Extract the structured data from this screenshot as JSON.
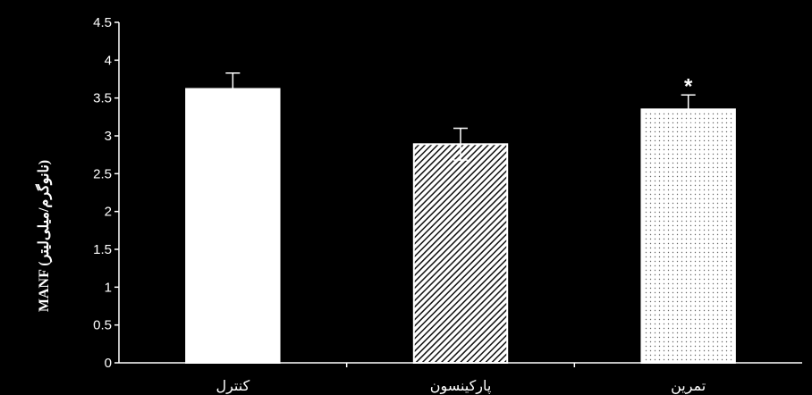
{
  "chart_data": {
    "type": "bar",
    "title": "",
    "xlabel": "",
    "ylabel": "MANF (نانوگرم/میلی‌لیتر)",
    "ylim": [
      0,
      4.5
    ],
    "yticks": [
      0,
      0.5,
      1,
      1.5,
      2,
      2.5,
      3,
      3.5,
      4,
      4.5
    ],
    "ytick_labels": [
      "0",
      "0.5",
      "1",
      "1.5",
      "2",
      "2.5",
      "3",
      "3.5",
      "4",
      "4.5"
    ],
    "grid": false,
    "legend": "none",
    "categories": [
      "کنترل",
      "پارکینسون",
      "تمرین"
    ],
    "values": [
      3.62,
      2.89,
      3.35
    ],
    "errors": [
      0.21,
      0.21,
      0.19
    ],
    "fills": [
      "white",
      "diagonal-hatch",
      "dotted"
    ],
    "annotations": [
      "",
      "",
      "*"
    ],
    "colors": {
      "background": "#000000",
      "axis": "#ffffff",
      "bar_edge": "#ffffff",
      "bar_fill": "#ffffff",
      "hatch": "#111111",
      "dots": "#666666"
    }
  }
}
